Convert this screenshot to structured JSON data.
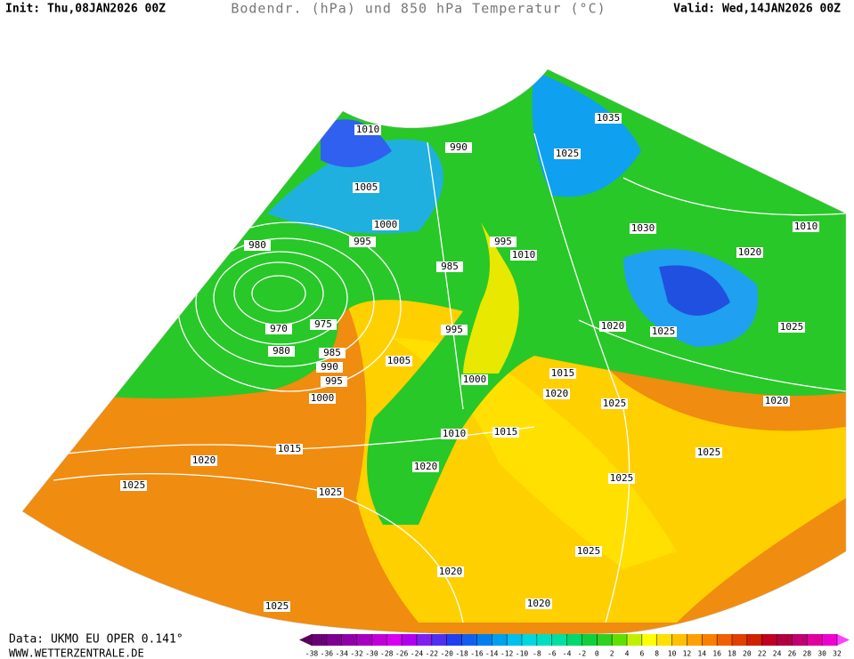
{
  "header": {
    "init": "Init: Thu,08JAN2026 00Z",
    "title": "Bodendr. (hPa) und 850 hPa Temperatur (°C)",
    "valid": "Valid: Wed,14JAN2026 00Z"
  },
  "footer": {
    "data": "Data: UKMO EU OPER 0.141°",
    "site": "WWW.WETTERZENTRALE.DE"
  },
  "isobar_labels": [
    1010,
    1005,
    990,
    1035,
    1025,
    1000,
    995,
    980,
    985,
    995,
    1010,
    1030,
    1020,
    1010,
    970,
    975,
    980,
    985,
    990,
    995,
    1000,
    995,
    1005,
    1000,
    1015,
    1020,
    1020,
    1025,
    1025,
    1025,
    1020,
    1010,
    1015,
    1015,
    1020,
    1020,
    1025,
    1025,
    1025,
    1025,
    1025,
    1020,
    1020,
    1025
  ],
  "colorbar": {
    "ticks": [
      -38,
      -36,
      -34,
      -32,
      -30,
      -28,
      -26,
      -24,
      -22,
      -20,
      -18,
      -16,
      -14,
      -12,
      -10,
      -8,
      -6,
      -4,
      -2,
      0,
      2,
      4,
      6,
      8,
      10,
      12,
      14,
      16,
      18,
      20,
      22,
      24,
      26,
      28,
      30,
      32
    ],
    "colors": [
      "#5a0060",
      "#6a0078",
      "#7d0090",
      "#9000a8",
      "#a800c0",
      "#c000d8",
      "#d800f0",
      "#b000f0",
      "#8020f0",
      "#5030f0",
      "#2040f0",
      "#1060f0",
      "#0080f0",
      "#00a0f0",
      "#00c0f0",
      "#00d8e0",
      "#00e0c0",
      "#00e0a0",
      "#00d870",
      "#10d040",
      "#30d020",
      "#60e000",
      "#c0f000",
      "#ffff00",
      "#ffe000",
      "#ffc000",
      "#ffa000",
      "#f88000",
      "#f06000",
      "#e04000",
      "#d02000",
      "#c00020",
      "#b00040",
      "#c00070",
      "#e000a0",
      "#f000d0",
      "#ff40ff"
    ]
  }
}
